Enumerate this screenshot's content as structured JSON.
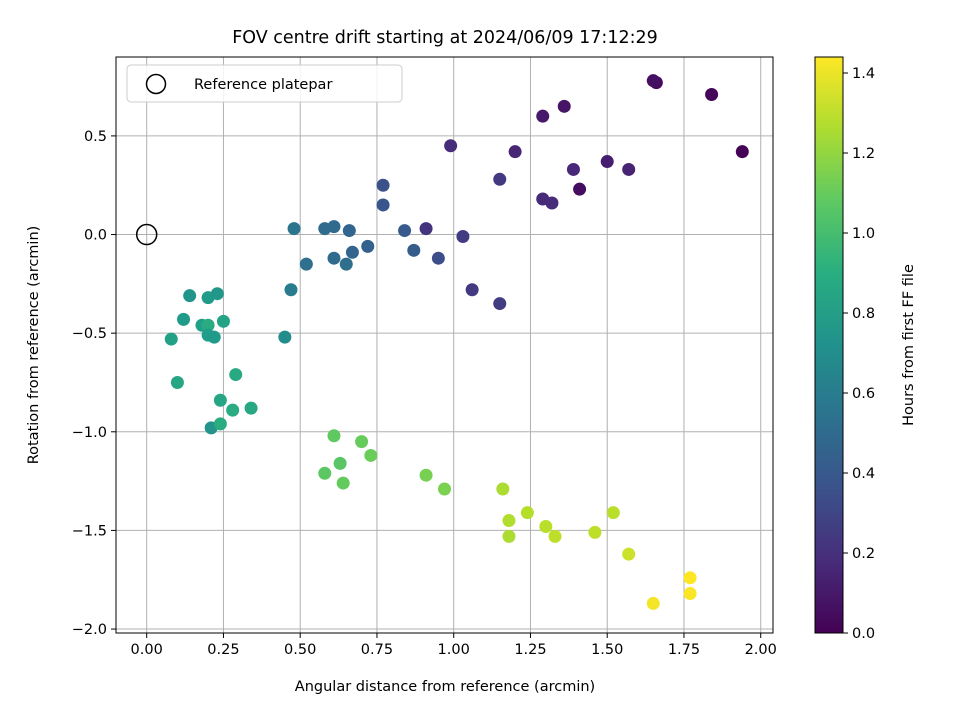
{
  "chart_data": {
    "type": "scatter",
    "title": "FOV centre drift starting at 2024/06/09 17:12:29",
    "xlabel": "Angular distance from reference (arcmin)",
    "ylabel": "Rotation from reference (arcmin)",
    "xlim": [
      -0.1,
      2.04
    ],
    "ylim": [
      -2.02,
      0.9
    ],
    "xticks": [
      0.0,
      0.25,
      0.5,
      0.75,
      1.0,
      1.25,
      1.5,
      1.75,
      2.0
    ],
    "xtick_labels": [
      "0.00",
      "0.25",
      "0.50",
      "0.75",
      "1.00",
      "1.25",
      "1.50",
      "1.75",
      "2.00"
    ],
    "yticks": [
      0.5,
      0.0,
      -0.5,
      -1.0,
      -1.5,
      -2.0
    ],
    "ytick_labels": [
      "0.5",
      "0.0",
      "−0.5",
      "−1.0",
      "−1.5",
      "−2.0"
    ],
    "grid": true,
    "legend": {
      "placement": "top-left",
      "entries": [
        "Reference platepar"
      ]
    },
    "reference_marker": {
      "x": 0.0,
      "y": 0.0
    },
    "colorbar": {
      "label": "Hours from first FF file",
      "colormap": "viridis",
      "range": [
        0.0,
        1.44
      ],
      "ticks": [
        0.0,
        0.2,
        0.4,
        0.6,
        0.8,
        1.0,
        1.2,
        1.4
      ],
      "tick_labels": [
        "0.0",
        "0.2",
        "0.4",
        "0.6",
        "0.8",
        "1.0",
        "1.2",
        "1.4"
      ]
    },
    "points": [
      {
        "x": 1.94,
        "y": 0.42,
        "c": 0.01
      },
      {
        "x": 1.84,
        "y": 0.71,
        "c": 0.02
      },
      {
        "x": 1.66,
        "y": 0.77,
        "c": 0.04
      },
      {
        "x": 1.65,
        "y": 0.78,
        "c": 0.06
      },
      {
        "x": 1.41,
        "y": 0.23,
        "c": 0.05
      },
      {
        "x": 1.36,
        "y": 0.65,
        "c": 0.08
      },
      {
        "x": 1.29,
        "y": 0.6,
        "c": 0.1
      },
      {
        "x": 1.5,
        "y": 0.37,
        "c": 0.12
      },
      {
        "x": 1.57,
        "y": 0.33,
        "c": 0.14
      },
      {
        "x": 1.39,
        "y": 0.33,
        "c": 0.16
      },
      {
        "x": 1.29,
        "y": 0.18,
        "c": 0.17
      },
      {
        "x": 1.32,
        "y": 0.16,
        "c": 0.18
      },
      {
        "x": 1.2,
        "y": 0.42,
        "c": 0.15
      },
      {
        "x": 0.99,
        "y": 0.45,
        "c": 0.18
      },
      {
        "x": 1.15,
        "y": 0.28,
        "c": 0.24
      },
      {
        "x": 1.03,
        "y": -0.01,
        "c": 0.26
      },
      {
        "x": 0.91,
        "y": 0.03,
        "c": 0.22
      },
      {
        "x": 1.06,
        "y": -0.28,
        "c": 0.24
      },
      {
        "x": 1.15,
        "y": -0.35,
        "c": 0.26
      },
      {
        "x": 0.95,
        "y": -0.12,
        "c": 0.34
      },
      {
        "x": 0.77,
        "y": 0.25,
        "c": 0.36
      },
      {
        "x": 0.77,
        "y": 0.15,
        "c": 0.38
      },
      {
        "x": 0.84,
        "y": 0.02,
        "c": 0.4
      },
      {
        "x": 0.87,
        "y": -0.08,
        "c": 0.42
      },
      {
        "x": 0.72,
        "y": -0.06,
        "c": 0.44
      },
      {
        "x": 0.67,
        "y": -0.09,
        "c": 0.46
      },
      {
        "x": 0.66,
        "y": 0.02,
        "c": 0.47
      },
      {
        "x": 0.61,
        "y": 0.04,
        "c": 0.49
      },
      {
        "x": 0.58,
        "y": 0.03,
        "c": 0.5
      },
      {
        "x": 0.61,
        "y": -0.12,
        "c": 0.5
      },
      {
        "x": 0.65,
        "y": -0.15,
        "c": 0.52
      },
      {
        "x": 0.52,
        "y": -0.15,
        "c": 0.53
      },
      {
        "x": 0.48,
        "y": 0.03,
        "c": 0.56
      },
      {
        "x": 0.47,
        "y": -0.28,
        "c": 0.6
      },
      {
        "x": 0.45,
        "y": -0.52,
        "c": 0.7
      },
      {
        "x": 0.14,
        "y": -0.31,
        "c": 0.75
      },
      {
        "x": 0.2,
        "y": -0.32,
        "c": 0.78
      },
      {
        "x": 0.23,
        "y": -0.3,
        "c": 0.76
      },
      {
        "x": 0.12,
        "y": -0.43,
        "c": 0.79
      },
      {
        "x": 0.18,
        "y": -0.46,
        "c": 0.81
      },
      {
        "x": 0.2,
        "y": -0.46,
        "c": 0.88
      },
      {
        "x": 0.2,
        "y": -0.51,
        "c": 0.8
      },
      {
        "x": 0.22,
        "y": -0.52,
        "c": 0.78
      },
      {
        "x": 0.25,
        "y": -0.44,
        "c": 0.84
      },
      {
        "x": 0.08,
        "y": -0.53,
        "c": 0.82
      },
      {
        "x": 0.1,
        "y": -0.75,
        "c": 0.85
      },
      {
        "x": 0.29,
        "y": -0.71,
        "c": 0.87
      },
      {
        "x": 0.24,
        "y": -0.84,
        "c": 0.85
      },
      {
        "x": 0.28,
        "y": -0.89,
        "c": 0.88
      },
      {
        "x": 0.34,
        "y": -0.88,
        "c": 0.86
      },
      {
        "x": 0.21,
        "y": -0.98,
        "c": 0.74
      },
      {
        "x": 0.24,
        "y": -0.96,
        "c": 0.89
      },
      {
        "x": 0.61,
        "y": -1.02,
        "c": 1.08
      },
      {
        "x": 0.7,
        "y": -1.05,
        "c": 1.1
      },
      {
        "x": 0.63,
        "y": -1.16,
        "c": 1.06
      },
      {
        "x": 0.58,
        "y": -1.21,
        "c": 1.07
      },
      {
        "x": 0.73,
        "y": -1.12,
        "c": 1.11
      },
      {
        "x": 0.64,
        "y": -1.26,
        "c": 1.09
      },
      {
        "x": 0.91,
        "y": -1.22,
        "c": 1.14
      },
      {
        "x": 0.97,
        "y": -1.29,
        "c": 1.15
      },
      {
        "x": 1.16,
        "y": -1.29,
        "c": 1.26
      },
      {
        "x": 1.24,
        "y": -1.41,
        "c": 1.28
      },
      {
        "x": 1.18,
        "y": -1.45,
        "c": 1.27
      },
      {
        "x": 1.18,
        "y": -1.53,
        "c": 1.26
      },
      {
        "x": 1.3,
        "y": -1.48,
        "c": 1.29
      },
      {
        "x": 1.33,
        "y": -1.53,
        "c": 1.3
      },
      {
        "x": 1.46,
        "y": -1.51,
        "c": 1.3
      },
      {
        "x": 1.52,
        "y": -1.41,
        "c": 1.29
      },
      {
        "x": 1.57,
        "y": -1.62,
        "c": 1.33
      },
      {
        "x": 1.65,
        "y": -1.87,
        "c": 1.42
      },
      {
        "x": 1.77,
        "y": -1.74,
        "c": 1.44
      },
      {
        "x": 1.77,
        "y": -1.82,
        "c": 1.43
      }
    ]
  }
}
